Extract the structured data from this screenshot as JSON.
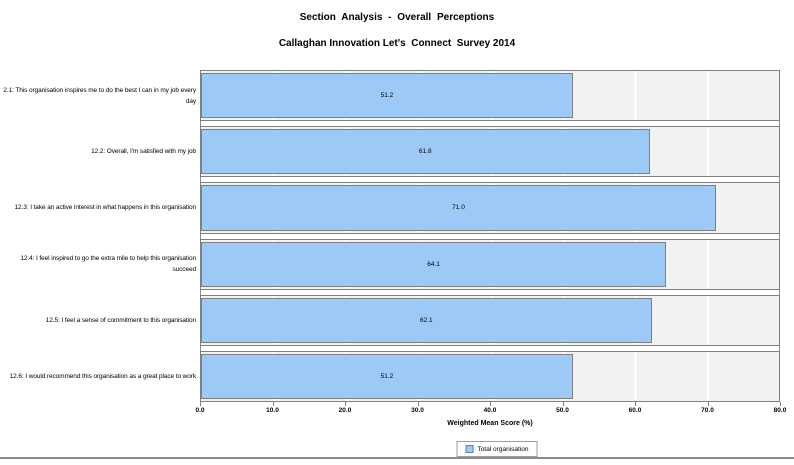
{
  "header": {
    "title": "Section Analysis - Overall Perceptions",
    "subtitle": "Callaghan Innovation Let's  Connect  Survey 2014"
  },
  "chart_data": {
    "type": "bar",
    "orientation": "horizontal",
    "title": "Section Analysis - Overall Perceptions",
    "subtitle": "Callaghan Innovation Let's Connect Survey 2014",
    "categories": [
      "2.1: This organisation inspires me to do the best I can in my job every day",
      "12.2: Overall, I'm satisfied with my job",
      "12.3: I take an active interest in what happens in this organisation",
      "12.4: I feel inspired to go the extra mile to help this organisation succeed",
      "12.5: I feel a sense of commitment to this organisation",
      "12.6: I would recommend this organisation as a great place to work"
    ],
    "series": [
      {
        "name": "Total organisation",
        "values": [
          51.2,
          61.8,
          71.0,
          64.1,
          62.1,
          51.2
        ]
      }
    ],
    "xlabel": "Weighted Mean Score (%)",
    "xlim": [
      0,
      80
    ],
    "x_ticks": [
      "0.0",
      "10.0",
      "20.0",
      "30.0",
      "40.0",
      "50.0",
      "60.0",
      "70.0",
      "80.0"
    ],
    "grid": "vertical white gridlines every 10 units",
    "legend": {
      "position": "bottom",
      "entries": [
        "Total organisation"
      ]
    },
    "colors": {
      "bar_fill": "#9CC9F5",
      "bar_border": "#7F7F7F",
      "band_bg": "#F2F2F2",
      "gridline": "#FFFFFF",
      "band_border": "#808080",
      "legend_swatch_border": "#4F81BD"
    }
  }
}
